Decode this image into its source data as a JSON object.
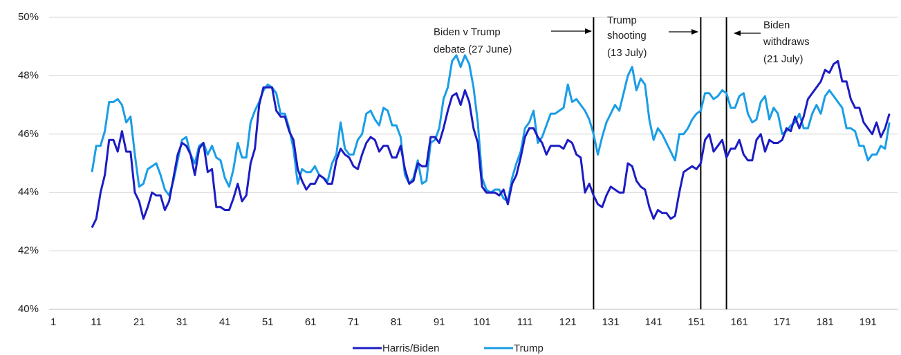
{
  "chart_data": {
    "type": "line",
    "x": [
      10,
      11,
      12,
      13,
      14,
      15,
      16,
      17,
      18,
      19,
      20,
      21,
      22,
      23,
      24,
      25,
      26,
      27,
      28,
      29,
      30,
      31,
      32,
      33,
      34,
      35,
      36,
      37,
      38,
      39,
      40,
      41,
      42,
      43,
      44,
      45,
      46,
      47,
      48,
      49,
      50,
      51,
      52,
      53,
      54,
      55,
      56,
      57,
      58,
      59,
      60,
      61,
      62,
      63,
      64,
      65,
      66,
      67,
      68,
      69,
      70,
      71,
      72,
      73,
      74,
      75,
      76,
      77,
      78,
      79,
      80,
      81,
      82,
      83,
      84,
      85,
      86,
      87,
      88,
      89,
      90,
      91,
      92,
      93,
      94,
      95,
      96,
      97,
      98,
      99,
      100,
      101,
      102,
      103,
      104,
      105,
      106,
      107,
      108,
      109,
      110,
      111,
      112,
      113,
      114,
      115,
      116,
      117,
      118,
      119,
      120,
      121,
      122,
      123,
      124,
      125,
      126,
      127,
      128,
      129,
      130,
      131,
      132,
      133,
      134,
      135,
      136,
      137,
      138,
      139,
      140,
      141,
      142,
      143,
      144,
      145,
      146,
      147,
      148,
      149,
      150,
      151,
      152,
      153,
      154,
      155,
      156,
      157,
      158,
      159,
      160,
      161,
      162,
      163,
      164,
      165,
      166,
      167,
      168,
      169,
      170,
      171,
      172,
      173,
      174,
      175,
      176,
      177,
      178,
      179,
      180,
      181,
      182,
      183,
      184,
      185,
      186,
      187,
      188,
      189,
      190,
      191,
      192,
      193,
      194,
      195,
      196
    ],
    "series": [
      {
        "name": "Harris/Biden",
        "color": "#1c1cc4",
        "values": [
          42.8,
          43.1,
          44.0,
          44.6,
          45.8,
          45.8,
          45.4,
          46.1,
          45.4,
          45.4,
          44.0,
          43.7,
          43.1,
          43.5,
          44.0,
          43.9,
          43.9,
          43.4,
          43.7,
          44.5,
          45.3,
          45.7,
          45.6,
          45.3,
          44.6,
          45.5,
          45.7,
          44.7,
          44.8,
          43.5,
          43.5,
          43.4,
          43.4,
          43.8,
          44.3,
          43.7,
          43.9,
          45.0,
          45.5,
          47.0,
          47.6,
          47.6,
          47.6,
          46.8,
          46.6,
          46.6,
          46.1,
          45.8,
          44.8,
          44.4,
          44.1,
          44.3,
          44.3,
          44.6,
          44.5,
          44.3,
          44.3,
          45.1,
          45.5,
          45.3,
          45.2,
          44.9,
          44.8,
          45.3,
          45.7,
          45.9,
          45.8,
          45.4,
          45.6,
          45.6,
          45.2,
          45.2,
          45.6,
          44.8,
          44.3,
          44.4,
          45.0,
          44.9,
          44.9,
          45.9,
          45.9,
          45.7,
          46.2,
          46.8,
          47.3,
          47.4,
          47.0,
          47.5,
          47.1,
          46.2,
          45.7,
          44.2,
          44.0,
          44.0,
          44.0,
          43.9,
          44.1,
          43.6,
          44.3,
          44.6,
          45.2,
          45.9,
          46.2,
          46.2,
          45.9,
          45.7,
          45.3,
          45.6,
          45.6,
          45.6,
          45.5,
          45.8,
          45.7,
          45.3,
          45.2,
          44.0,
          44.3,
          43.9,
          43.6,
          43.5,
          43.9,
          44.2,
          44.1,
          44.0,
          44.0,
          45.0,
          44.9,
          44.4,
          44.2,
          44.1,
          43.5,
          43.1,
          43.4,
          43.3,
          43.3,
          43.1,
          43.2,
          44.0,
          44.7,
          44.8,
          44.9,
          44.8,
          45.0,
          45.8,
          46.0,
          45.4,
          45.6,
          45.8,
          45.2,
          45.5,
          45.5,
          45.8,
          45.3,
          45.1,
          45.1,
          45.8,
          46.0,
          45.4,
          45.8,
          45.7,
          45.7,
          45.8,
          46.2,
          46.1,
          46.6,
          46.2,
          46.6,
          47.2,
          47.4,
          47.6,
          47.8,
          48.2,
          48.1,
          48.4,
          48.5,
          47.8,
          47.8,
          47.2,
          46.9,
          46.9,
          46.4,
          46.2,
          46.0,
          46.4,
          45.9,
          46.2,
          46.7
        ]
      },
      {
        "name": "Trump",
        "color": "#1a9de6",
        "values": [
          44.7,
          45.6,
          45.6,
          46.1,
          47.1,
          47.1,
          47.2,
          47.0,
          46.4,
          46.6,
          45.3,
          44.2,
          44.3,
          44.8,
          44.9,
          45.0,
          44.6,
          44.1,
          43.9,
          44.4,
          45.1,
          45.8,
          45.9,
          45.3,
          45.0,
          45.6,
          45.7,
          45.3,
          45.6,
          45.2,
          45.1,
          44.5,
          44.2,
          44.8,
          45.7,
          45.2,
          45.2,
          46.4,
          46.8,
          47.1,
          47.5,
          47.7,
          47.6,
          47.4,
          46.7,
          46.7,
          46.2,
          45.5,
          44.3,
          44.8,
          44.7,
          44.7,
          44.9,
          44.6,
          44.5,
          44.4,
          45.0,
          45.3,
          46.4,
          45.5,
          45.3,
          45.3,
          45.8,
          46.0,
          46.7,
          46.8,
          46.5,
          46.3,
          46.9,
          46.8,
          46.3,
          46.3,
          45.9,
          44.6,
          44.3,
          44.5,
          45.1,
          44.3,
          44.4,
          45.7,
          45.8,
          46.2,
          47.2,
          47.6,
          48.5,
          48.7,
          48.3,
          48.7,
          48.4,
          47.6,
          46.4,
          44.5,
          44.1,
          44.0,
          44.1,
          44.1,
          43.8,
          43.7,
          44.5,
          45.0,
          45.4,
          46.2,
          46.4,
          46.8,
          45.7,
          45.9,
          46.3,
          46.7,
          46.7,
          46.8,
          46.9,
          47.7,
          47.1,
          47.2,
          47.0,
          46.8,
          46.5,
          46.0,
          45.3,
          45.9,
          46.4,
          46.7,
          47.0,
          46.8,
          47.4,
          48.0,
          48.3,
          47.5,
          47.9,
          47.7,
          46.5,
          45.8,
          46.2,
          46.0,
          45.7,
          45.4,
          45.1,
          46.0,
          46.0,
          46.2,
          46.5,
          46.7,
          46.8,
          47.4,
          47.4,
          47.2,
          47.3,
          47.5,
          47.4,
          46.9,
          46.9,
          47.3,
          47.4,
          46.7,
          46.4,
          46.5,
          47.1,
          47.3,
          46.5,
          46.9,
          46.7,
          46.0,
          46.1,
          46.3,
          46.4,
          46.7,
          46.2,
          46.2,
          46.7,
          47.0,
          46.7,
          47.3,
          47.5,
          47.3,
          47.1,
          46.9,
          46.2,
          46.2,
          46.1,
          45.6,
          45.6,
          45.1,
          45.3,
          45.3,
          45.6,
          45.5,
          46.4
        ]
      }
    ],
    "xlim": [
      0,
      198
    ],
    "xticks": [
      1,
      11,
      21,
      31,
      41,
      51,
      61,
      71,
      81,
      91,
      101,
      111,
      121,
      131,
      141,
      151,
      161,
      171,
      181,
      191
    ],
    "ylim": [
      40,
      50
    ],
    "yticks": [
      {
        "value": 40,
        "label": "40%"
      },
      {
        "value": 42,
        "label": "42%"
      },
      {
        "value": 44,
        "label": "44%"
      },
      {
        "value": 46,
        "label": "46%"
      },
      {
        "value": 48,
        "label": "48%"
      },
      {
        "value": 50,
        "label": "50%"
      }
    ],
    "grid": true,
    "legend": "bottom",
    "vlines": [
      127,
      152,
      158
    ],
    "annotations": [
      {
        "lines": [
          "Biden v Trump",
          "debate  (27 June)"
        ]
      },
      {
        "lines": [
          "Trump",
          "shooting",
          "(13 July)"
        ]
      },
      {
        "lines": [
          "Biden",
          "withdraws",
          "(21 July)"
        ]
      }
    ]
  }
}
